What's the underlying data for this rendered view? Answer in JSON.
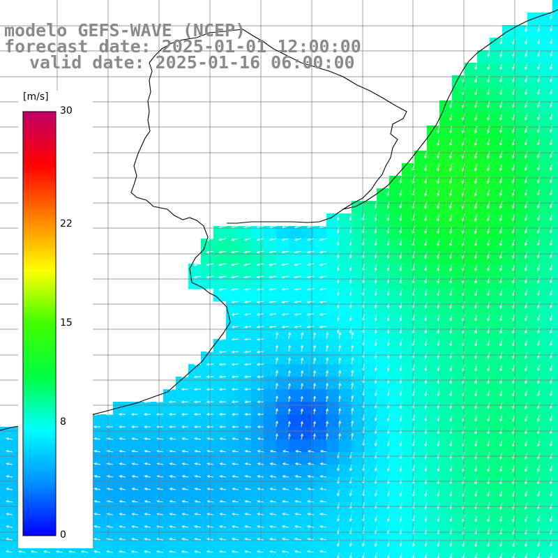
{
  "title": {
    "model": "modelo GEFS-WAVE (NCEP)",
    "forecast": "forecast date: 2025-01-01 12:00:00",
    "valid": "valid date: 2025-01-16 06:00:00"
  },
  "colorbar": {
    "unit": "[m/s]",
    "ticks": [
      "30",
      "22",
      "15",
      "8",
      "0"
    ],
    "tick_values": [
      30,
      22,
      15,
      8,
      0
    ],
    "range": [
      0,
      30
    ],
    "colors": [
      "#0000ff",
      "#0090ff",
      "#00ffff",
      "#00ff40",
      "#40ff00",
      "#ffff00",
      "#ff8000",
      "#ff0000",
      "#c0006a"
    ]
  },
  "map": {
    "field": "wind speed and direction",
    "land_color": "#ffffff",
    "grid_color": "#7a7a7a",
    "coast_color": "#000000",
    "arrow_color": "#ffffff"
  }
}
